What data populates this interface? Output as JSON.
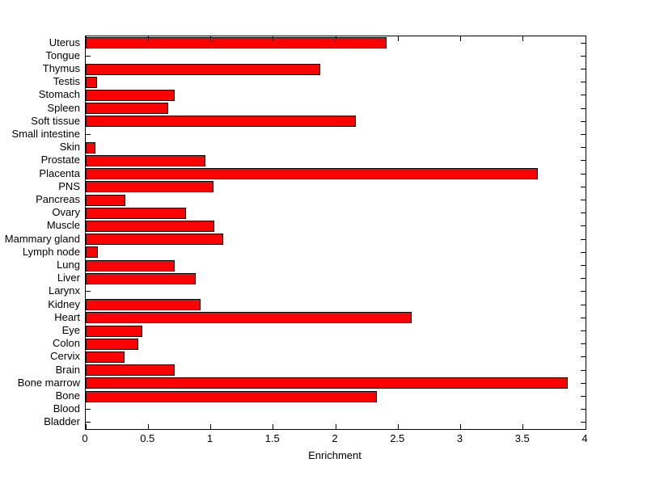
{
  "figure": {
    "background": "#ffffff",
    "axis_color": "#000000",
    "text_color": "#000000"
  },
  "chart_data": {
    "type": "bar",
    "orientation": "horizontal",
    "title": "",
    "xlabel": "Enrichment",
    "ylabel": "",
    "xlim": [
      0,
      4
    ],
    "xticks": [
      0,
      0.5,
      1,
      1.5,
      2,
      2.5,
      3,
      3.5,
      4
    ],
    "xtick_labels": [
      "0",
      "0.5",
      "1",
      "1.5",
      "2",
      "2.5",
      "3",
      "3.5",
      "4"
    ],
    "grid": false,
    "legend": null,
    "bar_color": "#ff0000",
    "bar_edge_color": "#000000",
    "categories_top_to_bottom": true,
    "categories": [
      "Uterus",
      "Tongue",
      "Thymus",
      "Testis",
      "Stomach",
      "Spleen",
      "Soft tissue",
      "Small intestine",
      "Skin",
      "Prostate",
      "Placenta",
      "PNS",
      "Pancreas",
      "Ovary",
      "Muscle",
      "Mammary gland",
      "Lymph node",
      "Lung",
      "Liver",
      "Larynx",
      "Kidney",
      "Heart",
      "Eye",
      "Colon",
      "Cervix",
      "Brain",
      "Bone marrow",
      "Bone",
      "Blood",
      "Bladder"
    ],
    "values": [
      2.41,
      0,
      1.88,
      0.09,
      0.71,
      0.66,
      2.16,
      0,
      0.08,
      0.96,
      3.62,
      1.02,
      0.32,
      0.8,
      1.03,
      1.1,
      0.1,
      0.71,
      0.88,
      0,
      0.92,
      2.61,
      0.45,
      0.42,
      0.31,
      0.71,
      3.86,
      2.33,
      0,
      0
    ]
  }
}
